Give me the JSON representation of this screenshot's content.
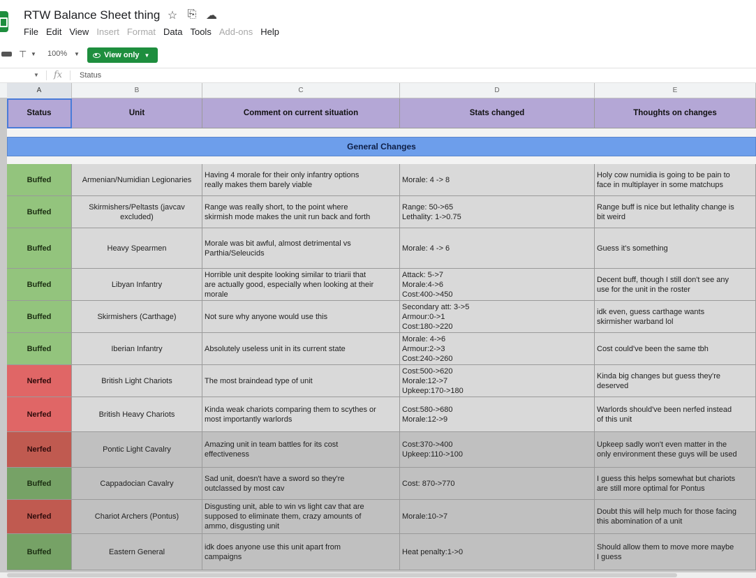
{
  "document": {
    "title": "RTW Balance Sheet thing"
  },
  "menu": [
    "File",
    "Edit",
    "View",
    "Insert",
    "Format",
    "Data",
    "Tools",
    "Add-ons",
    "Help"
  ],
  "menu_disabled": [
    "Insert",
    "Format",
    "Add-ons"
  ],
  "toolbar": {
    "zoom": "100%",
    "mode_label": "View only"
  },
  "formula_bar": {
    "fx_label": "fx",
    "content": "Status"
  },
  "columns": [
    "A",
    "B",
    "C",
    "D",
    "E"
  ],
  "header": {
    "status": "Status",
    "unit": "Unit",
    "comment": "Comment on current situation",
    "stats": "Stats changed",
    "thoughts": "Thoughts on changes"
  },
  "section_title": "General Changes",
  "colors": {
    "header_purple": "#b4a7d6",
    "section_blue": "#6d9eeb",
    "buffed_green": "#93c47d",
    "nerfed_red": "#e06666",
    "view_only_green": "#1e8e3e"
  },
  "rows": [
    {
      "status": "Buffed",
      "unit": "Armenian/Numidian Legionaries",
      "comment": [
        "Having 4 morale for their only infantry options",
        "really makes them barely viable"
      ],
      "stats": [
        "Morale: 4 -> 8"
      ],
      "thoughts": [
        "Holy cow numidia is going to be pain to",
        "face in multiplayer in some matchups"
      ]
    },
    {
      "status": "Buffed",
      "unit": "Skirmishers/Peltasts (javcav excluded)",
      "comment": [
        "Range was really short, to the point where",
        "skirmish mode makes the unit run back and forth"
      ],
      "stats": [
        "Range: 50->65",
        "Lethality: 1->0.75"
      ],
      "thoughts": [
        "Range buff is nice but lethality change is",
        "bit weird"
      ]
    },
    {
      "status": "Buffed",
      "unit": "Heavy Spearmen",
      "comment": [
        "Morale was bit awful, almost detrimental vs",
        "Parthia/Seleucids"
      ],
      "stats": [
        "Morale: 4 -> 6"
      ],
      "thoughts": [
        "Guess it's something"
      ]
    },
    {
      "status": "Buffed",
      "unit": "Libyan Infantry",
      "comment": [
        "Horrible unit despite looking similar to triarii that",
        "are actually good, especially when looking at their",
        "morale"
      ],
      "stats": [
        "Attack: 5->7",
        "Morale:4->6",
        "Cost:400->450"
      ],
      "thoughts": [
        "Decent buff, though I still don't see any",
        "use for the unit in the roster"
      ]
    },
    {
      "status": "Buffed",
      "unit": "Skirmishers (Carthage)",
      "comment": [
        "Not sure why anyone would use this"
      ],
      "stats": [
        "Secondary att: 3->5",
        "Armour:0->1",
        "Cost:180->220"
      ],
      "thoughts": [
        "idk even, guess carthage wants",
        "skirmisher warband lol"
      ]
    },
    {
      "status": "Buffed",
      "unit": "Iberian Infantry",
      "comment": [
        "Absolutely useless unit in its current state"
      ],
      "stats": [
        "Morale: 4->6",
        "Armour:2->3",
        "Cost:240->260"
      ],
      "thoughts": [
        "Cost could've been the same tbh"
      ]
    },
    {
      "status": "Nerfed",
      "unit": "British Light Chariots",
      "comment": [
        "The most braindead type of unit"
      ],
      "stats": [
        "Cost:500->620",
        "Morale:12->7",
        "Upkeep:170->180"
      ],
      "thoughts": [
        "Kinda big changes but guess they're",
        "deserved"
      ]
    },
    {
      "status": "Nerfed",
      "unit": "British Heavy Chariots",
      "comment": [
        "Kinda weak chariots comparing them to scythes or",
        "most importantly warlords"
      ],
      "stats": [
        "Cost:580->680",
        "Morale:12->9"
      ],
      "thoughts": [
        "Warlords should've been nerfed instead",
        "of this unit"
      ]
    },
    {
      "status": "Nerfed",
      "unit": "Pontic Light Cavalry",
      "comment": [
        "Amazing unit in team battles for its cost",
        "effectiveness"
      ],
      "stats": [
        "Cost:370->400",
        "Upkeep:110->100"
      ],
      "thoughts": [
        "Upkeep sadly won't even matter in the",
        "only environment these guys will be used"
      ]
    },
    {
      "status": "Buffed",
      "unit": "Cappadocian Cavalry",
      "comment": [
        "Sad unit, doesn't have a sword so they're",
        "outclassed by most cav"
      ],
      "stats": [
        "Cost: 870->770"
      ],
      "thoughts": [
        "I guess this helps somewhat but chariots",
        "are still more optimal for Pontus"
      ]
    },
    {
      "status": "Nerfed",
      "unit": "Chariot Archers (Pontus)",
      "comment": [
        "Disgusting unit, able to win vs light cav that are",
        "supposed to eliminate them, crazy amounts of",
        "ammo, disgusting unit"
      ],
      "stats": [
        "Morale:10->7"
      ],
      "thoughts": [
        "Doubt this will help much for those facing",
        "this abomination of a unit"
      ]
    },
    {
      "status": "Buffed",
      "unit": "Eastern General",
      "comment": [
        "idk does anyone use this unit apart from",
        "campaigns"
      ],
      "stats": [
        "Heat penalty:1->0"
      ],
      "thoughts": [
        "Should allow them to move more maybe",
        "I guess"
      ]
    }
  ]
}
